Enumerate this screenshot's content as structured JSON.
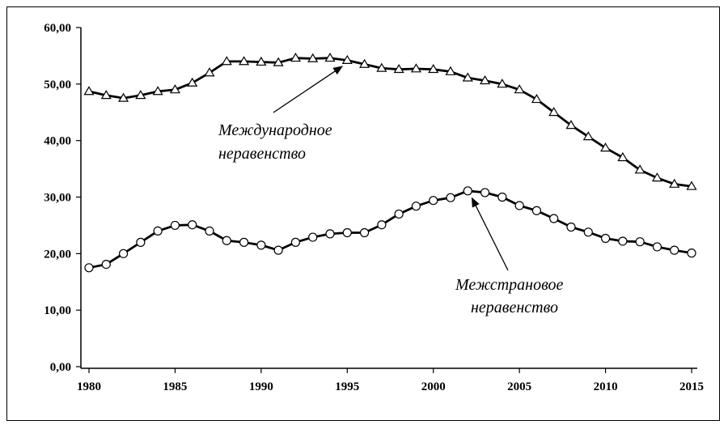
{
  "chart_data": {
    "type": "line",
    "title": "",
    "xlabel": "",
    "ylabel": "",
    "x": [
      1980,
      1981,
      1982,
      1983,
      1984,
      1985,
      1986,
      1987,
      1988,
      1989,
      1990,
      1991,
      1992,
      1993,
      1994,
      1995,
      1996,
      1997,
      1998,
      1999,
      2000,
      2001,
      2002,
      2003,
      2004,
      2005,
      2006,
      2007,
      2008,
      2009,
      2010,
      2011,
      2012,
      2013,
      2014,
      2015
    ],
    "x_ticks": [
      "1980",
      "1985",
      "1990",
      "1995",
      "2000",
      "2005",
      "2010",
      "2015"
    ],
    "y_ticks": [
      "0,00",
      "10,00",
      "20,00",
      "30,00",
      "40,00",
      "50,00",
      "60,00"
    ],
    "ylim": [
      0,
      60
    ],
    "xlim": [
      1980,
      2015
    ],
    "grid": false,
    "series": [
      {
        "marker": "triangle",
        "values": [
          48.7,
          48.0,
          47.5,
          48.0,
          48.7,
          49.0,
          50.2,
          52.0,
          54.0,
          54.0,
          53.9,
          53.8,
          54.6,
          54.5,
          54.6,
          54.2,
          53.5,
          52.8,
          52.6,
          52.7,
          52.6,
          52.2,
          51.1,
          50.6,
          50.0,
          49.0,
          47.3,
          45.0,
          42.7,
          40.7,
          38.7,
          37.0,
          34.8,
          33.4,
          32.3,
          31.9
        ],
        "color": "#000000"
      },
      {
        "marker": "circle",
        "values": [
          17.5,
          18.1,
          20.0,
          22.0,
          24.0,
          25.0,
          25.1,
          24.0,
          22.3,
          22.0,
          21.5,
          20.6,
          22.0,
          22.9,
          23.5,
          23.7,
          23.7,
          25.1,
          27.0,
          28.4,
          29.4,
          29.9,
          31.1,
          30.8,
          30.0,
          28.5,
          27.6,
          26.2,
          24.7,
          23.8,
          22.7,
          22.2,
          22.1,
          21.2,
          20.6,
          20.1
        ],
        "color": "#000000"
      }
    ],
    "annotations": [
      {
        "lines": [
          "Международное",
          "неравенство"
        ],
        "arrow_to": {
          "x": 1994.9,
          "y": 54.0
        }
      },
      {
        "lines": [
          "Межстрановое",
          "неравенство"
        ],
        "arrow_to": {
          "x": 2002.1,
          "y": 31.0
        }
      }
    ]
  }
}
